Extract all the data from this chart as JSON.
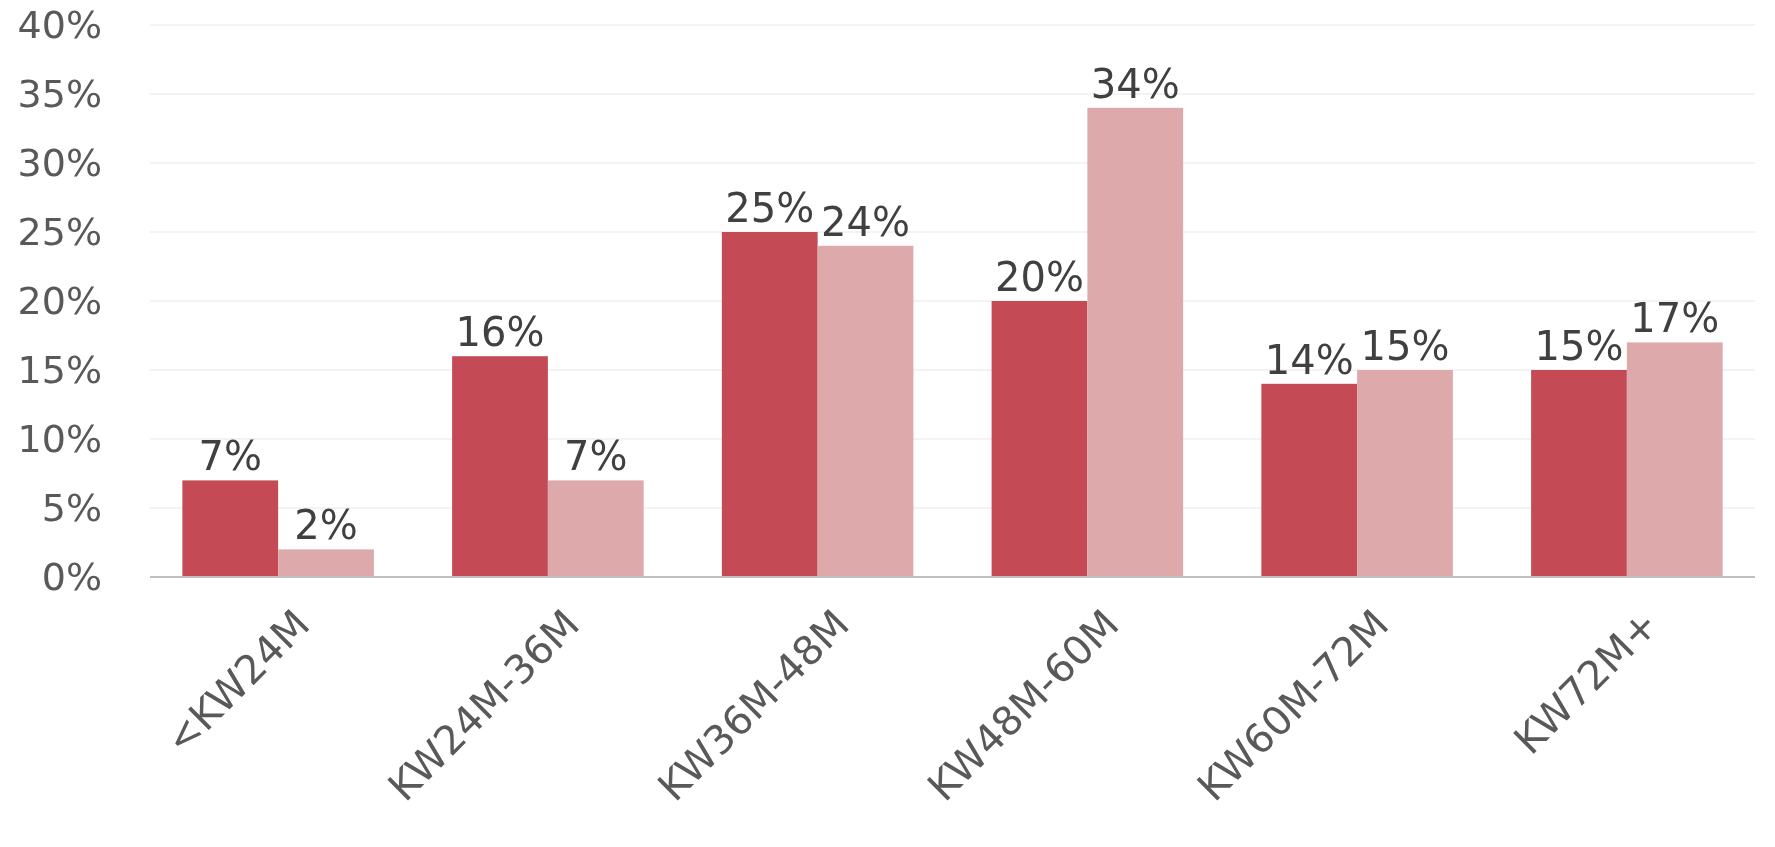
{
  "chart_data": {
    "type": "bar",
    "categories": [
      "<KW24M",
      "KW24M-36M",
      "KW36M-48M",
      "KW48M-60M",
      "KW60M-72M",
      "KW72M+"
    ],
    "series": [
      {
        "color": "#c44a55",
        "values": [
          7,
          16,
          25,
          20,
          14,
          15
        ],
        "value_labels": [
          "7%",
          "16%",
          "25%",
          "20%",
          "14%",
          "15%"
        ]
      },
      {
        "color": "#dea9aa",
        "values": [
          2,
          7,
          24,
          34,
          15,
          17
        ],
        "value_labels": [
          "2%",
          "7%",
          "24%",
          "34%",
          "15%",
          "17%"
        ]
      }
    ],
    "ylim": [
      0,
      40
    ],
    "yticks": [
      {
        "value": 0,
        "label": "0%"
      },
      {
        "value": 5,
        "label": "5%"
      },
      {
        "value": 10,
        "label": "10%"
      },
      {
        "value": 15,
        "label": "15%"
      },
      {
        "value": 20,
        "label": "20%"
      },
      {
        "value": 25,
        "label": "25%"
      },
      {
        "value": 30,
        "label": "30%"
      },
      {
        "value": 35,
        "label": "35%"
      },
      {
        "value": 40,
        "label": "40%"
      }
    ],
    "grid": "y"
  }
}
